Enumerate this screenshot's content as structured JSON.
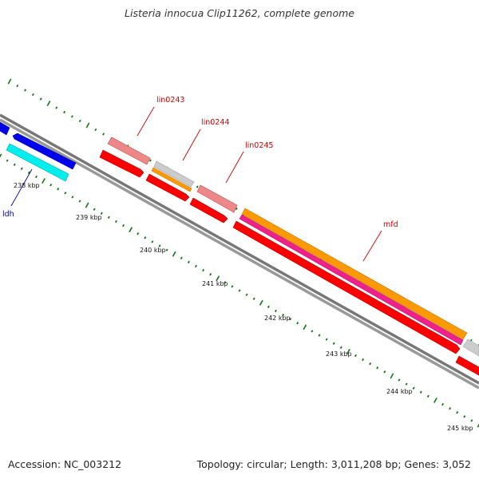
{
  "title": "Listeria innocua Clip11262, complete genome",
  "footer": {
    "accession": "Accession: NC_003212",
    "summary": "Topology: circular; Length: 3,011,208 bp; Genes: 3,052"
  },
  "colors": {
    "backbone": "#888888",
    "tick_major": "#117711",
    "tick_minor": "#117711",
    "red": "#ff0000",
    "pink": "#ee8888",
    "blue": "#0000ee",
    "cyan": "#00eeee",
    "orange": "#ff9900",
    "magenta": "#ee2288",
    "grey": "#cccccc",
    "label_red": "#cc0000",
    "label_blue": "#000099"
  },
  "kbp_labels": [
    "238 kbp",
    "239 kbp",
    "240 kbp",
    "241 kbp",
    "242 kbp",
    "243 kbp",
    "244 kbp",
    "245 kbp"
  ],
  "gene_labels": [
    {
      "text": "lin0243",
      "color": "label_red"
    },
    {
      "text": "lin0244",
      "color": "label_red"
    },
    {
      "text": "lin0245",
      "color": "label_red"
    },
    {
      "text": "mfd",
      "color": "label_red"
    },
    {
      "text": "ldh",
      "color": "label_blue"
    }
  ]
}
